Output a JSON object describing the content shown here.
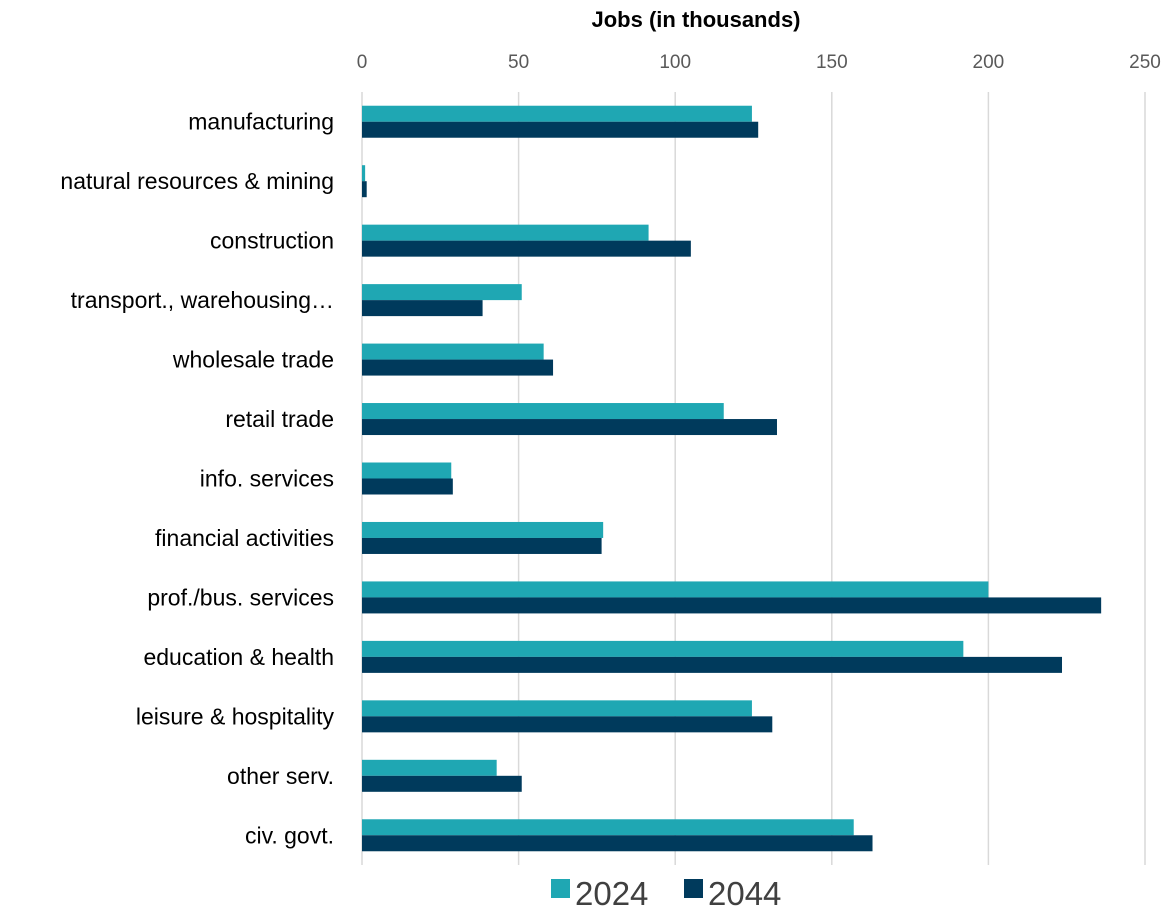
{
  "chart_data": {
    "type": "bar",
    "orientation": "horizontal",
    "title": "",
    "xlabel": "Jobs (in thousands)",
    "ylabel": "",
    "xlim": [
      0,
      250
    ],
    "x_ticks": [
      "0",
      "50",
      "100",
      "150",
      "200",
      "250"
    ],
    "x_axis_position": "top",
    "grid": true,
    "legend_position": "bottom",
    "categories": [
      "manufacturing",
      "natural resources & mining",
      "construction",
      "transport., warehousing…",
      "wholesale trade",
      "retail trade",
      "info. services",
      "financial activities",
      "prof./bus. services",
      "education & health",
      "leisure & hospitality",
      "other serv.",
      "civ. govt."
    ],
    "series": [
      {
        "name": "2024",
        "color": "#1fa7b3",
        "values": [
          124.5,
          1,
          91.5,
          51,
          58,
          115.5,
          28.5,
          77,
          200,
          192,
          124.5,
          43,
          157
        ]
      },
      {
        "name": "2044",
        "color": "#003a5c",
        "values": [
          126.5,
          1.5,
          105,
          38.5,
          61,
          132.5,
          29,
          76.5,
          236,
          223.5,
          131,
          51,
          163
        ]
      }
    ]
  }
}
